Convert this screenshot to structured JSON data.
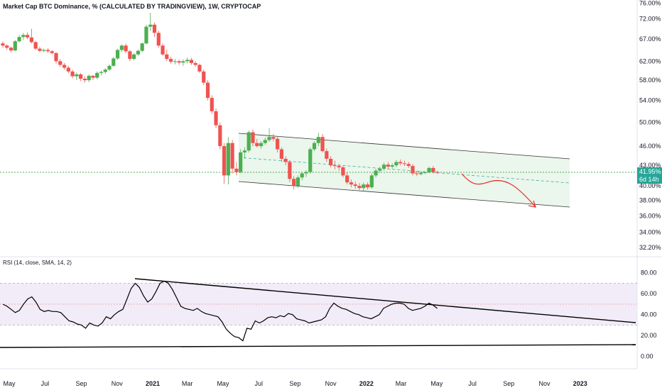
{
  "header": {
    "title": "Market Cap BTC Dominance, % (CALCULATED BY TRADINGVIEW), 1W, CRYPTOCAP"
  },
  "price_badge": {
    "value": "41.95%",
    "countdown": "6d 14h"
  },
  "rsi_panel": {
    "label": "RSI (14, close, SMA, 14, 2)"
  },
  "colors": {
    "up": "#26a69a",
    "up_fill": "#4caf50",
    "down": "#ef5350",
    "channel_fill": "#e8f5e9",
    "rsi_band": "#ede7f6",
    "rsi_line": "#000000",
    "arrow": "#e53935",
    "current_price_line": "#4caf50"
  },
  "chart_data": [
    {
      "type": "candlestick",
      "y_scale": "log",
      "ylim": [
        31.5,
        76.5
      ],
      "y_ticks": [
        "76.00%",
        "72.00%",
        "67.00%",
        "62.00%",
        "58.00%",
        "54.00%",
        "50.00%",
        "46.00%",
        "43.00%",
        "40.00%",
        "38.00%",
        "36.00%",
        "34.00%",
        "32.20%"
      ],
      "y_tick_values": [
        76,
        72,
        67,
        62,
        58,
        54,
        50,
        46,
        43,
        40,
        38,
        36,
        34,
        32.2
      ],
      "x_ticks": [
        "May",
        "Jul",
        "Sep",
        "Nov",
        "2021",
        "Mar",
        "May",
        "Jul",
        "Sep",
        "Nov",
        "2022",
        "Mar",
        "May",
        "Jul",
        "Sep",
        "Nov",
        "2023"
      ],
      "x_start": "2020-04-20",
      "x_end": "2023-02-20",
      "candles": [
        {
          "date": "2020-04-20",
          "o": 66.0,
          "h": 66.5,
          "l": 65.0,
          "c": 65.5
        },
        {
          "date": "2020-04-27",
          "o": 65.5,
          "h": 65.8,
          "l": 64.5,
          "c": 65.0
        },
        {
          "date": "2020-05-04",
          "o": 65.0,
          "h": 65.3,
          "l": 64.0,
          "c": 64.4
        },
        {
          "date": "2020-05-11",
          "o": 64.4,
          "h": 66.8,
          "l": 64.2,
          "c": 66.5
        },
        {
          "date": "2020-05-18",
          "o": 66.5,
          "h": 68.0,
          "l": 66.2,
          "c": 67.5
        },
        {
          "date": "2020-05-25",
          "o": 67.5,
          "h": 68.5,
          "l": 66.8,
          "c": 68.0
        },
        {
          "date": "2020-06-01",
          "o": 68.0,
          "h": 68.6,
          "l": 67.0,
          "c": 67.4
        },
        {
          "date": "2020-06-08",
          "o": 67.4,
          "h": 69.5,
          "l": 66.0,
          "c": 66.3
        },
        {
          "date": "2020-06-15",
          "o": 66.3,
          "h": 66.6,
          "l": 64.5,
          "c": 64.8
        },
        {
          "date": "2020-06-22",
          "o": 64.8,
          "h": 65.2,
          "l": 64.0,
          "c": 64.3
        },
        {
          "date": "2020-06-29",
          "o": 64.3,
          "h": 64.8,
          "l": 64.0,
          "c": 64.5
        },
        {
          "date": "2020-07-06",
          "o": 64.5,
          "h": 64.9,
          "l": 63.8,
          "c": 64.2
        },
        {
          "date": "2020-07-13",
          "o": 64.2,
          "h": 64.5,
          "l": 63.5,
          "c": 63.8
        },
        {
          "date": "2020-07-20",
          "o": 63.8,
          "h": 64.0,
          "l": 61.5,
          "c": 62.0
        },
        {
          "date": "2020-07-27",
          "o": 62.0,
          "h": 62.5,
          "l": 60.8,
          "c": 61.2
        },
        {
          "date": "2020-08-03",
          "o": 61.2,
          "h": 61.6,
          "l": 60.2,
          "c": 60.6
        },
        {
          "date": "2020-08-10",
          "o": 60.6,
          "h": 61.0,
          "l": 59.4,
          "c": 59.8
        },
        {
          "date": "2020-08-17",
          "o": 59.8,
          "h": 60.2,
          "l": 58.4,
          "c": 58.8
        },
        {
          "date": "2020-08-24",
          "o": 58.8,
          "h": 59.6,
          "l": 58.0,
          "c": 59.2
        },
        {
          "date": "2020-08-31",
          "o": 59.2,
          "h": 59.5,
          "l": 57.8,
          "c": 58.3
        },
        {
          "date": "2020-09-07",
          "o": 58.3,
          "h": 58.8,
          "l": 57.5,
          "c": 58.0
        },
        {
          "date": "2020-09-14",
          "o": 58.0,
          "h": 59.2,
          "l": 57.6,
          "c": 58.9
        },
        {
          "date": "2020-09-21",
          "o": 58.9,
          "h": 59.1,
          "l": 58.0,
          "c": 58.5
        },
        {
          "date": "2020-09-28",
          "o": 58.5,
          "h": 59.8,
          "l": 58.2,
          "c": 59.5
        },
        {
          "date": "2020-10-05",
          "o": 59.5,
          "h": 60.0,
          "l": 59.0,
          "c": 59.7
        },
        {
          "date": "2020-10-12",
          "o": 59.7,
          "h": 60.5,
          "l": 59.3,
          "c": 60.2
        },
        {
          "date": "2020-10-19",
          "o": 60.2,
          "h": 61.3,
          "l": 59.9,
          "c": 61.0
        },
        {
          "date": "2020-10-26",
          "o": 61.0,
          "h": 63.0,
          "l": 60.8,
          "c": 62.6
        },
        {
          "date": "2020-11-02",
          "o": 62.6,
          "h": 64.8,
          "l": 62.3,
          "c": 64.5
        },
        {
          "date": "2020-11-09",
          "o": 64.5,
          "h": 65.8,
          "l": 64.0,
          "c": 65.5
        },
        {
          "date": "2020-11-16",
          "o": 65.5,
          "h": 66.0,
          "l": 63.8,
          "c": 64.2
        },
        {
          "date": "2020-11-23",
          "o": 64.2,
          "h": 64.5,
          "l": 62.0,
          "c": 62.5
        },
        {
          "date": "2020-11-30",
          "o": 62.5,
          "h": 63.8,
          "l": 62.2,
          "c": 63.5
        },
        {
          "date": "2020-12-07",
          "o": 63.5,
          "h": 64.6,
          "l": 63.2,
          "c": 64.3
        },
        {
          "date": "2020-12-14",
          "o": 64.3,
          "h": 66.2,
          "l": 64.0,
          "c": 66.0
        },
        {
          "date": "2020-12-21",
          "o": 66.0,
          "h": 70.5,
          "l": 65.8,
          "c": 70.0
        },
        {
          "date": "2020-12-28",
          "o": 70.0,
          "h": 73.5,
          "l": 69.0,
          "c": 70.5
        },
        {
          "date": "2021-01-04",
          "o": 70.5,
          "h": 71.0,
          "l": 67.5,
          "c": 68.5
        },
        {
          "date": "2021-01-11",
          "o": 68.5,
          "h": 69.0,
          "l": 65.0,
          "c": 65.5
        },
        {
          "date": "2021-01-18",
          "o": 65.5,
          "h": 66.0,
          "l": 63.2,
          "c": 63.5
        },
        {
          "date": "2021-01-25",
          "o": 63.5,
          "h": 64.5,
          "l": 62.0,
          "c": 62.5
        },
        {
          "date": "2021-02-01",
          "o": 62.5,
          "h": 63.0,
          "l": 61.5,
          "c": 61.9
        },
        {
          "date": "2021-02-08",
          "o": 61.9,
          "h": 62.5,
          "l": 61.3,
          "c": 62.0
        },
        {
          "date": "2021-02-15",
          "o": 62.0,
          "h": 62.4,
          "l": 61.2,
          "c": 61.7
        },
        {
          "date": "2021-02-22",
          "o": 61.7,
          "h": 62.4,
          "l": 61.0,
          "c": 62.0
        },
        {
          "date": "2021-03-01",
          "o": 62.0,
          "h": 62.8,
          "l": 61.5,
          "c": 62.3
        },
        {
          "date": "2021-03-08",
          "o": 62.3,
          "h": 62.7,
          "l": 61.2,
          "c": 61.6
        },
        {
          "date": "2021-03-15",
          "o": 61.6,
          "h": 62.0,
          "l": 60.8,
          "c": 61.2
        },
        {
          "date": "2021-03-22",
          "o": 61.2,
          "h": 61.5,
          "l": 59.5,
          "c": 59.8
        },
        {
          "date": "2021-03-29",
          "o": 59.8,
          "h": 60.2,
          "l": 57.0,
          "c": 57.5
        },
        {
          "date": "2021-04-05",
          "o": 57.5,
          "h": 58.0,
          "l": 54.0,
          "c": 54.5
        },
        {
          "date": "2021-04-12",
          "o": 54.5,
          "h": 55.0,
          "l": 51.5,
          "c": 52.0
        },
        {
          "date": "2021-04-19",
          "o": 52.0,
          "h": 52.5,
          "l": 49.0,
          "c": 49.5
        },
        {
          "date": "2021-04-26",
          "o": 49.5,
          "h": 50.0,
          "l": 45.5,
          "c": 46.0
        },
        {
          "date": "2021-05-03",
          "o": 46.0,
          "h": 46.5,
          "l": 40.3,
          "c": 41.5
        },
        {
          "date": "2021-05-10",
          "o": 41.5,
          "h": 47.5,
          "l": 40.2,
          "c": 46.5
        },
        {
          "date": "2021-05-17",
          "o": 46.5,
          "h": 47.0,
          "l": 41.8,
          "c": 42.5
        },
        {
          "date": "2021-05-24",
          "o": 42.5,
          "h": 43.5,
          "l": 41.5,
          "c": 42.0
        },
        {
          "date": "2021-05-31",
          "o": 42.0,
          "h": 45.5,
          "l": 41.8,
          "c": 45.0
        },
        {
          "date": "2021-06-07",
          "o": 45.0,
          "h": 45.8,
          "l": 44.0,
          "c": 45.3
        },
        {
          "date": "2021-06-14",
          "o": 45.3,
          "h": 48.6,
          "l": 45.0,
          "c": 48.3
        },
        {
          "date": "2021-06-21",
          "o": 48.3,
          "h": 48.8,
          "l": 46.0,
          "c": 46.5
        },
        {
          "date": "2021-06-28",
          "o": 46.5,
          "h": 47.2,
          "l": 45.8,
          "c": 46.0
        },
        {
          "date": "2021-07-05",
          "o": 46.0,
          "h": 46.8,
          "l": 45.6,
          "c": 46.5
        },
        {
          "date": "2021-07-12",
          "o": 46.5,
          "h": 47.4,
          "l": 46.2,
          "c": 47.0
        },
        {
          "date": "2021-07-19",
          "o": 47.0,
          "h": 49.0,
          "l": 46.7,
          "c": 47.5
        },
        {
          "date": "2021-07-26",
          "o": 47.5,
          "h": 48.0,
          "l": 46.8,
          "c": 47.2
        },
        {
          "date": "2021-08-02",
          "o": 47.2,
          "h": 47.5,
          "l": 45.0,
          "c": 45.5
        },
        {
          "date": "2021-08-09",
          "o": 45.5,
          "h": 45.8,
          "l": 43.5,
          "c": 44.0
        },
        {
          "date": "2021-08-16",
          "o": 44.0,
          "h": 44.4,
          "l": 43.0,
          "c": 43.5
        },
        {
          "date": "2021-08-23",
          "o": 43.5,
          "h": 43.8,
          "l": 40.5,
          "c": 41.0
        },
        {
          "date": "2021-08-30",
          "o": 41.0,
          "h": 41.4,
          "l": 39.5,
          "c": 40.0
        },
        {
          "date": "2021-09-06",
          "o": 40.0,
          "h": 41.5,
          "l": 39.7,
          "c": 41.2
        },
        {
          "date": "2021-09-13",
          "o": 41.2,
          "h": 42.0,
          "l": 40.8,
          "c": 41.8
        },
        {
          "date": "2021-09-20",
          "o": 41.8,
          "h": 42.3,
          "l": 41.3,
          "c": 42.0
        },
        {
          "date": "2021-09-27",
          "o": 42.0,
          "h": 45.8,
          "l": 41.8,
          "c": 45.5
        },
        {
          "date": "2021-10-04",
          "o": 45.5,
          "h": 46.8,
          "l": 45.2,
          "c": 46.5
        },
        {
          "date": "2021-10-11",
          "o": 46.5,
          "h": 48.2,
          "l": 46.0,
          "c": 47.5
        },
        {
          "date": "2021-10-18",
          "o": 47.5,
          "h": 48.0,
          "l": 45.0,
          "c": 45.2
        },
        {
          "date": "2021-10-25",
          "o": 45.2,
          "h": 45.6,
          "l": 43.5,
          "c": 44.0
        },
        {
          "date": "2021-11-01",
          "o": 44.0,
          "h": 44.4,
          "l": 42.7,
          "c": 43.0
        },
        {
          "date": "2021-11-08",
          "o": 43.0,
          "h": 43.7,
          "l": 42.4,
          "c": 42.9
        },
        {
          "date": "2021-11-15",
          "o": 42.9,
          "h": 43.2,
          "l": 42.2,
          "c": 42.7
        },
        {
          "date": "2021-11-22",
          "o": 42.7,
          "h": 43.0,
          "l": 41.2,
          "c": 41.5
        },
        {
          "date": "2021-11-29",
          "o": 41.5,
          "h": 42.0,
          "l": 40.2,
          "c": 40.5
        },
        {
          "date": "2021-12-06",
          "o": 40.5,
          "h": 40.9,
          "l": 39.8,
          "c": 40.2
        },
        {
          "date": "2021-12-13",
          "o": 40.2,
          "h": 40.6,
          "l": 39.6,
          "c": 40.0
        },
        {
          "date": "2021-12-20",
          "o": 40.0,
          "h": 40.4,
          "l": 39.4,
          "c": 39.7
        },
        {
          "date": "2021-12-27",
          "o": 39.7,
          "h": 40.5,
          "l": 39.2,
          "c": 40.2
        },
        {
          "date": "2022-01-03",
          "o": 40.2,
          "h": 40.5,
          "l": 39.5,
          "c": 39.8
        },
        {
          "date": "2022-01-10",
          "o": 39.8,
          "h": 41.8,
          "l": 39.6,
          "c": 41.5
        },
        {
          "date": "2022-01-17",
          "o": 41.5,
          "h": 42.5,
          "l": 41.2,
          "c": 42.2
        },
        {
          "date": "2022-01-24",
          "o": 42.2,
          "h": 42.8,
          "l": 41.9,
          "c": 42.5
        },
        {
          "date": "2022-01-31",
          "o": 42.5,
          "h": 43.4,
          "l": 42.2,
          "c": 43.1
        },
        {
          "date": "2022-02-07",
          "o": 43.1,
          "h": 43.5,
          "l": 42.5,
          "c": 42.8
        },
        {
          "date": "2022-02-14",
          "o": 42.8,
          "h": 43.3,
          "l": 42.5,
          "c": 43.0
        },
        {
          "date": "2022-02-21",
          "o": 43.0,
          "h": 43.8,
          "l": 42.7,
          "c": 43.5
        },
        {
          "date": "2022-02-28",
          "o": 43.5,
          "h": 43.9,
          "l": 43.0,
          "c": 43.3
        },
        {
          "date": "2022-03-07",
          "o": 43.3,
          "h": 43.7,
          "l": 42.9,
          "c": 43.2
        },
        {
          "date": "2022-03-14",
          "o": 43.2,
          "h": 43.5,
          "l": 42.6,
          "c": 42.9
        },
        {
          "date": "2022-03-21",
          "o": 42.9,
          "h": 43.2,
          "l": 41.5,
          "c": 41.8
        },
        {
          "date": "2022-03-28",
          "o": 41.8,
          "h": 42.2,
          "l": 41.4,
          "c": 41.7
        },
        {
          "date": "2022-04-04",
          "o": 41.7,
          "h": 42.1,
          "l": 41.5,
          "c": 41.9
        },
        {
          "date": "2022-04-11",
          "o": 41.9,
          "h": 42.1,
          "l": 41.7,
          "c": 41.95
        },
        {
          "date": "2022-04-18",
          "o": 41.95,
          "h": 42.8,
          "l": 41.8,
          "c": 42.6
        },
        {
          "date": "2022-04-25",
          "o": 42.6,
          "h": 42.9,
          "l": 41.8,
          "c": 42.0
        },
        {
          "date": "2022-05-02",
          "o": 42.0,
          "h": 42.2,
          "l": 41.7,
          "c": 41.95
        }
      ],
      "current_price": 41.95
    },
    {
      "type": "line",
      "title": "RSI (14, close, SMA, 14, 2)",
      "y_ticks": [
        "80.00",
        "60.00",
        "40.00",
        "20.00",
        "0.00"
      ],
      "y_tick_values": [
        80,
        60,
        40,
        20,
        0
      ],
      "ylim": [
        -10.4,
        90
      ],
      "band": [
        30,
        70
      ],
      "series": [
        {
          "values": [
            50,
            48,
            45,
            42,
            44,
            50,
            55,
            57,
            52,
            45,
            43,
            44,
            43,
            43,
            42,
            38,
            34,
            33,
            31,
            30,
            27,
            32,
            30,
            29,
            32,
            38,
            36,
            40,
            43,
            45,
            55,
            65,
            70,
            66,
            58,
            52,
            55,
            62,
            70,
            72,
            70,
            64,
            56,
            48,
            46,
            45,
            44,
            46,
            43,
            41,
            40,
            39,
            38,
            33,
            26,
            22,
            19,
            18,
            15,
            27,
            26,
            34,
            32,
            34,
            37,
            38,
            37,
            39,
            38,
            41,
            40,
            36,
            35,
            34,
            32,
            33,
            34,
            35,
            38,
            46,
            51,
            48,
            46,
            45,
            43,
            41,
            40,
            38,
            37,
            36,
            38,
            40,
            46,
            48,
            50,
            51,
            51,
            50,
            46,
            44,
            45,
            46,
            48,
            51,
            49,
            46
          ]
        }
      ]
    }
  ]
}
